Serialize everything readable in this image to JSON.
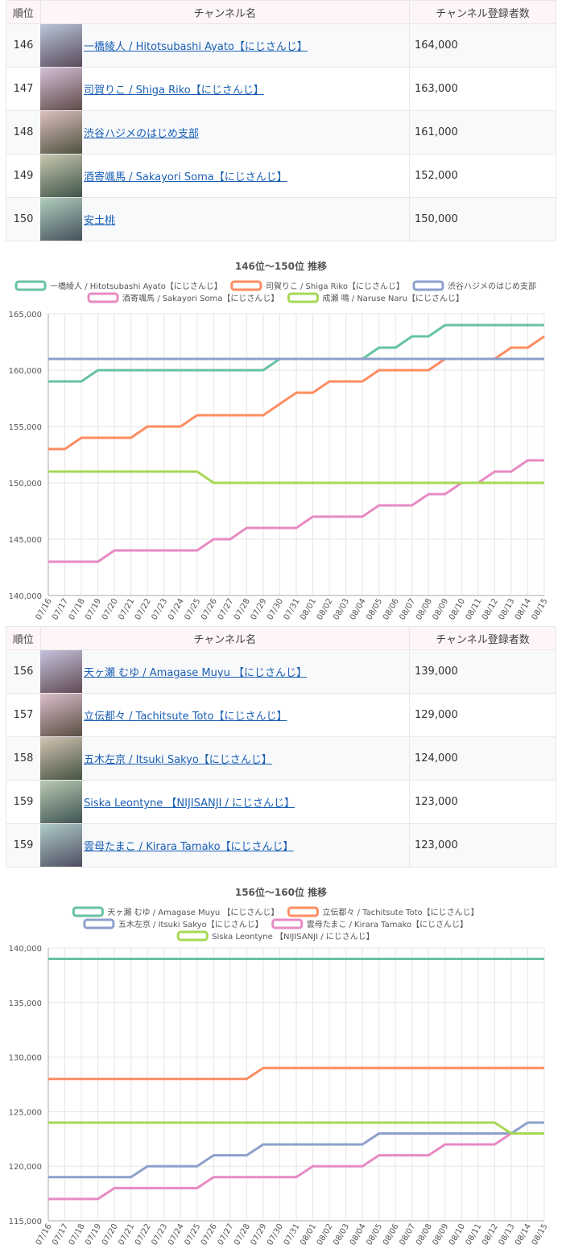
{
  "tables": [
    {
      "header": [
        "順位",
        "チャンネル名",
        "チャンネル登録者数"
      ],
      "rows": [
        [
          "146",
          "一橋綾人 / Hitotsubashi Ayato【にじさんじ】",
          "164,000"
        ],
        [
          "147",
          "司賀りこ / Shiga Riko【にじさんじ】",
          "163,000"
        ],
        [
          "148",
          "渋谷ハジメのはじめ支部",
          "161,000"
        ],
        [
          "149",
          "酒寄颯馬 / Sakayori Soma【にじさんじ】",
          "152,000"
        ],
        [
          "150",
          "安土桃",
          "150,000"
        ]
      ]
    },
    {
      "header": [
        "順位",
        "チャンネル名",
        "チャンネル登録者数"
      ],
      "rows": [
        [
          "156",
          "天ヶ瀬 むゆ / Amagase Muyu 【にじさんじ】",
          "139,000"
        ],
        [
          "157",
          "立伝都々 / Tachitsute Toto【にじさんじ】",
          "129,000"
        ],
        [
          "158",
          "五木左京 / Itsuki Sakyo【にじさんじ】",
          "124,000"
        ],
        [
          "159",
          "Siska Leontyne 【NIJISANJI / にじさんじ】",
          "123,000"
        ],
        [
          "159",
          "雲母たまこ / Kirara Tamako【にじさんじ】",
          "123,000"
        ]
      ]
    }
  ],
  "chart_data": [
    {
      "type": "line",
      "title": "146位～150位 推移",
      "categories": [
        "07/16",
        "07/17",
        "07/18",
        "07/19",
        "07/20",
        "07/21",
        "07/22",
        "07/23",
        "07/24",
        "07/25",
        "07/26",
        "07/27",
        "07/28",
        "07/29",
        "07/30",
        "07/31",
        "08/01",
        "08/02",
        "08/03",
        "08/04",
        "08/05",
        "08/06",
        "08/07",
        "08/08",
        "08/09",
        "08/10",
        "08/11",
        "08/12",
        "08/13",
        "08/14",
        "08/15"
      ],
      "ylim": [
        140000,
        165000
      ],
      "yticks": [
        {
          "value": 140000,
          "label": "140,000"
        },
        {
          "value": 145000,
          "label": "145,000"
        },
        {
          "value": 150000,
          "label": "150,000"
        },
        {
          "value": 155000,
          "label": "155,000"
        },
        {
          "value": 160000,
          "label": "160,000"
        },
        {
          "value": 165000,
          "label": "165,000"
        }
      ],
      "grid": true,
      "series": [
        {
          "name": "一橋綾人 / Hitotsubashi Ayato【にじさんじ】",
          "color": "#66c2a5",
          "values": [
            159000,
            159000,
            159000,
            160000,
            160000,
            160000,
            160000,
            160000,
            160000,
            160000,
            160000,
            160000,
            160000,
            160000,
            161000,
            161000,
            161000,
            161000,
            161000,
            161000,
            162000,
            162000,
            163000,
            163000,
            164000,
            164000,
            164000,
            164000,
            164000,
            164000,
            164000
          ]
        },
        {
          "name": "司賀りこ / Shiga Riko【にじさんじ】",
          "color": "#fc8d62",
          "values": [
            153000,
            153000,
            154000,
            154000,
            154000,
            154000,
            155000,
            155000,
            155000,
            156000,
            156000,
            156000,
            156000,
            156000,
            157000,
            158000,
            158000,
            159000,
            159000,
            159000,
            160000,
            160000,
            160000,
            160000,
            161000,
            161000,
            161000,
            161000,
            162000,
            162000,
            163000
          ]
        },
        {
          "name": "渋谷ハジメのはじめ支部",
          "color": "#8da0cb",
          "values": [
            161000,
            161000,
            161000,
            161000,
            161000,
            161000,
            161000,
            161000,
            161000,
            161000,
            161000,
            161000,
            161000,
            161000,
            161000,
            161000,
            161000,
            161000,
            161000,
            161000,
            161000,
            161000,
            161000,
            161000,
            161000,
            161000,
            161000,
            161000,
            161000,
            161000,
            161000
          ]
        },
        {
          "name": "酒寄颯馬 / Sakayori Soma【にじさんじ】",
          "color": "#e78ac3",
          "values": [
            143000,
            143000,
            143000,
            143000,
            144000,
            144000,
            144000,
            144000,
            144000,
            144000,
            145000,
            145000,
            146000,
            146000,
            146000,
            146000,
            147000,
            147000,
            147000,
            147000,
            148000,
            148000,
            148000,
            149000,
            149000,
            150000,
            150000,
            151000,
            151000,
            152000,
            152000
          ]
        },
        {
          "name": "成瀬 鳴 / Naruse Naru【にじさんじ】",
          "color": "#a6d854",
          "values": [
            151000,
            151000,
            151000,
            151000,
            151000,
            151000,
            151000,
            151000,
            151000,
            151000,
            150000,
            150000,
            150000,
            150000,
            150000,
            150000,
            150000,
            150000,
            150000,
            150000,
            150000,
            150000,
            150000,
            150000,
            150000,
            150000,
            150000,
            150000,
            150000,
            150000,
            150000
          ]
        }
      ]
    },
    {
      "type": "line",
      "title": "156位～160位 推移",
      "categories": [
        "07/16",
        "07/17",
        "07/18",
        "07/19",
        "07/20",
        "07/21",
        "07/22",
        "07/23",
        "07/24",
        "07/25",
        "07/26",
        "07/27",
        "07/28",
        "07/29",
        "07/30",
        "07/31",
        "08/01",
        "08/02",
        "08/03",
        "08/04",
        "08/05",
        "08/06",
        "08/07",
        "08/08",
        "08/09",
        "08/10",
        "08/11",
        "08/12",
        "08/13",
        "08/14",
        "08/15"
      ],
      "ylim": [
        115000,
        140000
      ],
      "yticks": [
        {
          "value": 115000,
          "label": "115,000"
        },
        {
          "value": 120000,
          "label": "120,000"
        },
        {
          "value": 125000,
          "label": "125,000"
        },
        {
          "value": 130000,
          "label": "130,000"
        },
        {
          "value": 135000,
          "label": "135,000"
        },
        {
          "value": 140000,
          "label": "140,000"
        }
      ],
      "grid": true,
      "series": [
        {
          "name": "天ヶ瀬 むゆ / Amagase Muyu 【にじさんじ】",
          "color": "#66c2a5",
          "values": [
            139000,
            139000,
            139000,
            139000,
            139000,
            139000,
            139000,
            139000,
            139000,
            139000,
            139000,
            139000,
            139000,
            139000,
            139000,
            139000,
            139000,
            139000,
            139000,
            139000,
            139000,
            139000,
            139000,
            139000,
            139000,
            139000,
            139000,
            139000,
            139000,
            139000,
            139000
          ]
        },
        {
          "name": "立伝都々 / Tachitsute Toto【にじさんじ】",
          "color": "#fc8d62",
          "values": [
            128000,
            128000,
            128000,
            128000,
            128000,
            128000,
            128000,
            128000,
            128000,
            128000,
            128000,
            128000,
            128000,
            129000,
            129000,
            129000,
            129000,
            129000,
            129000,
            129000,
            129000,
            129000,
            129000,
            129000,
            129000,
            129000,
            129000,
            129000,
            129000,
            129000,
            129000
          ]
        },
        {
          "name": "五木左京 / Itsuki Sakyo【にじさんじ】",
          "color": "#8da0cb",
          "values": [
            119000,
            119000,
            119000,
            119000,
            119000,
            119000,
            120000,
            120000,
            120000,
            120000,
            121000,
            121000,
            121000,
            122000,
            122000,
            122000,
            122000,
            122000,
            122000,
            122000,
            123000,
            123000,
            123000,
            123000,
            123000,
            123000,
            123000,
            123000,
            123000,
            124000,
            124000
          ]
        },
        {
          "name": "雲母たまこ / Kirara Tamako【にじさんじ】",
          "color": "#e78ac3",
          "values": [
            117000,
            117000,
            117000,
            117000,
            118000,
            118000,
            118000,
            118000,
            118000,
            118000,
            119000,
            119000,
            119000,
            119000,
            119000,
            119000,
            120000,
            120000,
            120000,
            120000,
            121000,
            121000,
            121000,
            121000,
            122000,
            122000,
            122000,
            122000,
            123000,
            123000,
            123000
          ]
        },
        {
          "name": "Siska Leontyne 【NIJISANJI / にじさんじ】",
          "color": "#a6d854",
          "values": [
            124000,
            124000,
            124000,
            124000,
            124000,
            124000,
            124000,
            124000,
            124000,
            124000,
            124000,
            124000,
            124000,
            124000,
            124000,
            124000,
            124000,
            124000,
            124000,
            124000,
            124000,
            124000,
            124000,
            124000,
            124000,
            124000,
            124000,
            124000,
            123000,
            123000,
            123000
          ]
        }
      ]
    }
  ]
}
